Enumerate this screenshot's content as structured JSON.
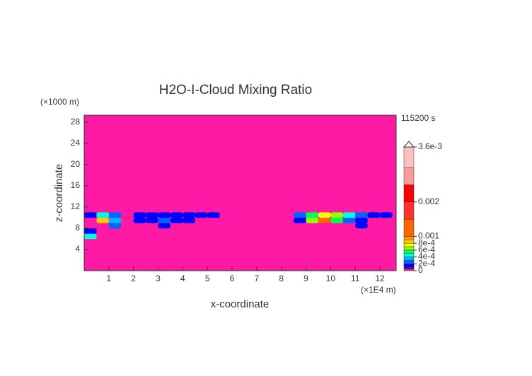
{
  "chart_data": {
    "type": "contour",
    "title": "H2O-I-Cloud Mixing Ratio",
    "x_label": "x-coordinate",
    "y_label": "z-coordinate",
    "x_unit": "(×1E4 m)",
    "y_unit": "(×1000 m)",
    "time_label": "115200 s",
    "xlim": [
      0,
      12.66
    ],
    "ylim": [
      0,
      29.3
    ],
    "xticks": [
      1,
      2,
      3,
      4,
      5,
      6,
      7,
      8,
      9,
      10,
      11,
      12
    ],
    "yticks": [
      4,
      8,
      12,
      16,
      20,
      24,
      28
    ],
    "x": [
      0.25,
      0.75,
      1.25,
      1.75,
      2.25,
      2.75,
      3.25,
      3.75,
      4.25,
      4.75,
      5.25,
      5.75,
      6.25,
      6.75,
      7.25,
      7.75,
      8.25,
      8.75,
      9.25,
      9.75,
      10.25,
      10.75,
      11.25,
      11.75,
      12.25
    ],
    "y": [
      6.5,
      7.5,
      8.5,
      9.5,
      10.5
    ],
    "z": [
      [
        0.0004,
        0,
        0,
        0,
        0,
        0,
        0,
        0,
        0,
        0,
        0,
        0,
        0,
        0,
        0,
        0,
        0,
        0,
        0,
        0,
        0,
        0,
        0,
        0,
        0
      ],
      [
        0.0001,
        0,
        0,
        0,
        0,
        0,
        0,
        0,
        0,
        0,
        0,
        0,
        0,
        0,
        0,
        0,
        0,
        0,
        0,
        0,
        0,
        0,
        0,
        0,
        0
      ],
      [
        0,
        0,
        0.0002,
        0,
        0,
        0,
        0.0001,
        0,
        0,
        0,
        0,
        0,
        0,
        0,
        0,
        0,
        0,
        0,
        0,
        0,
        0,
        0,
        0.0001,
        0,
        0
      ],
      [
        0,
        0.0008,
        0.0003,
        0,
        0.0001,
        0.00015,
        0.0002,
        0.0001,
        0.0001,
        0,
        0,
        0,
        0,
        0,
        0,
        0,
        0,
        0.0001,
        0.0006,
        0.001,
        0.0005,
        0.0002,
        0.0001,
        0,
        0
      ],
      [
        0.00015,
        0.0004,
        0.0002,
        0,
        0.0001,
        0.0001,
        0.0001,
        0.0001,
        0.0001,
        0.0001,
        0.0001,
        0,
        0,
        0,
        0,
        0,
        0,
        0.0002,
        0.0005,
        0.0007,
        0.0006,
        0.0004,
        0.0002,
        0.0001,
        0.0001
      ]
    ],
    "levels": [
      0,
      5e-05,
      0.0001,
      0.0002,
      0.0003,
      0.0004,
      0.0005,
      0.0006,
      0.0007,
      0.0008,
      0.0009,
      0.001,
      0.0015,
      0.002,
      0.0025,
      0.003,
      0.0036
    ],
    "colors": [
      "#ff1aa6",
      "#5a00b4",
      "#0000ff",
      "#0064ff",
      "#00b4ff",
      "#00ffdc",
      "#00ff50",
      "#96ff00",
      "#ffff00",
      "#ffc800",
      "#ff9600",
      "#ff6400",
      "#ff3030",
      "#ff0000",
      "#ff9a9a",
      "#ffc0c0"
    ],
    "colorbar_ticks": [
      {
        "value": 0,
        "label": "0"
      },
      {
        "value": 0.0002,
        "label": "2e-4"
      },
      {
        "value": 0.0004,
        "label": "4e-4"
      },
      {
        "value": 0.0006,
        "label": "6e-4"
      },
      {
        "value": 0.0008,
        "label": "8e-4"
      },
      0.001,
      0.002,
      {
        "value": 0.0036,
        "label": "3.6e-3"
      }
    ]
  }
}
